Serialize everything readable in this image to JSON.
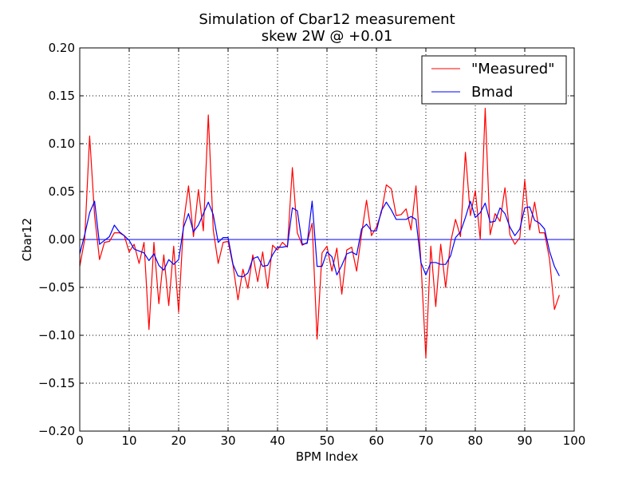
{
  "chart_data": {
    "type": "line",
    "title": "Simulation of Cbar12 measurement",
    "subtitle": "skew 2W @ +0.01",
    "xlabel": "BPM Index",
    "ylabel": "Cbar12",
    "xlim": [
      0,
      100
    ],
    "ylim": [
      -0.2,
      0.2
    ],
    "xticks": [
      0,
      10,
      20,
      30,
      40,
      50,
      60,
      70,
      80,
      90,
      100
    ],
    "yticks": [
      -0.2,
      -0.15,
      -0.1,
      -0.05,
      0.0,
      0.05,
      0.1,
      0.15,
      0.2
    ],
    "xtick_labels": [
      "0",
      "10",
      "20",
      "30",
      "40",
      "50",
      "60",
      "70",
      "80",
      "90",
      "100"
    ],
    "ytick_labels": [
      "−0.20",
      "−0.15",
      "−0.10",
      "−0.05",
      "0.00",
      "0.05",
      "0.10",
      "0.15",
      "0.20"
    ],
    "grid": true,
    "legend": "top-right",
    "x": [
      0,
      1,
      2,
      3,
      4,
      5,
      6,
      7,
      8,
      9,
      10,
      11,
      12,
      13,
      14,
      15,
      16,
      17,
      18,
      19,
      20,
      21,
      22,
      23,
      24,
      25,
      26,
      27,
      28,
      29,
      30,
      31,
      32,
      33,
      34,
      35,
      36,
      37,
      38,
      39,
      40,
      41,
      42,
      43,
      44,
      45,
      46,
      47,
      48,
      49,
      50,
      51,
      52,
      53,
      54,
      55,
      56,
      57,
      58,
      59,
      60,
      61,
      62,
      63,
      64,
      65,
      66,
      67,
      68,
      69,
      70,
      71,
      72,
      73,
      74,
      75,
      76,
      77,
      78,
      79,
      80,
      81,
      82,
      83,
      84,
      85,
      86,
      87,
      88,
      89,
      90,
      91,
      92,
      93,
      94,
      95,
      96,
      97
    ],
    "series": [
      {
        "name": "\"Measured\"",
        "color": "#ff0000",
        "values": [
          -0.028,
          0.0,
          0.108,
          0.025,
          -0.021,
          -0.003,
          -0.002,
          0.007,
          0.007,
          0.004,
          -0.013,
          -0.005,
          -0.025,
          -0.003,
          -0.094,
          -0.003,
          -0.067,
          -0.016,
          -0.069,
          -0.007,
          -0.076,
          0.018,
          0.056,
          0.003,
          0.052,
          0.009,
          0.13,
          0.01,
          -0.025,
          -0.003,
          -0.002,
          -0.027,
          -0.063,
          -0.031,
          -0.051,
          -0.016,
          -0.044,
          -0.013,
          -0.051,
          -0.006,
          -0.011,
          -0.003,
          -0.008,
          0.075,
          0.007,
          -0.006,
          -0.003,
          0.017,
          -0.104,
          -0.014,
          -0.007,
          -0.033,
          -0.009,
          -0.057,
          -0.011,
          -0.008,
          -0.033,
          0.006,
          0.041,
          0.004,
          0.013,
          0.028,
          0.057,
          0.053,
          0.025,
          0.026,
          0.032,
          0.01,
          0.056,
          -0.023,
          -0.123,
          -0.007,
          -0.07,
          -0.005,
          -0.05,
          -0.003,
          0.021,
          0.003,
          0.091,
          0.025,
          0.051,
          0.0,
          0.137,
          0.005,
          0.027,
          0.019,
          0.054,
          0.005,
          -0.005,
          0.002,
          0.062,
          0.01,
          0.039,
          0.007,
          0.007,
          -0.02,
          -0.073,
          -0.058
        ]
      },
      {
        "name": "Bmad",
        "color": "#0000ff",
        "values": [
          -0.015,
          0.005,
          0.028,
          0.04,
          -0.005,
          -0.001,
          0.003,
          0.015,
          0.008,
          0.004,
          -0.001,
          -0.01,
          -0.012,
          -0.014,
          -0.022,
          -0.015,
          -0.027,
          -0.032,
          -0.021,
          -0.026,
          -0.021,
          0.013,
          0.027,
          0.008,
          0.015,
          0.027,
          0.039,
          0.026,
          -0.003,
          0.002,
          0.002,
          -0.026,
          -0.038,
          -0.039,
          -0.035,
          -0.02,
          -0.018,
          -0.028,
          -0.027,
          -0.016,
          -0.008,
          -0.008,
          -0.007,
          0.033,
          0.03,
          -0.005,
          -0.004,
          0.04,
          -0.028,
          -0.028,
          -0.013,
          -0.018,
          -0.037,
          -0.027,
          -0.015,
          -0.013,
          -0.016,
          0.011,
          0.016,
          0.009,
          0.009,
          0.03,
          0.039,
          0.031,
          0.021,
          0.021,
          0.021,
          0.024,
          0.021,
          -0.024,
          -0.037,
          -0.024,
          -0.024,
          -0.026,
          -0.026,
          -0.017,
          0.002,
          0.008,
          0.023,
          0.04,
          0.023,
          0.028,
          0.038,
          0.018,
          0.019,
          0.033,
          0.027,
          0.013,
          0.004,
          0.011,
          0.033,
          0.034,
          0.02,
          0.017,
          0.011,
          -0.012,
          -0.028,
          -0.038
        ]
      }
    ]
  }
}
